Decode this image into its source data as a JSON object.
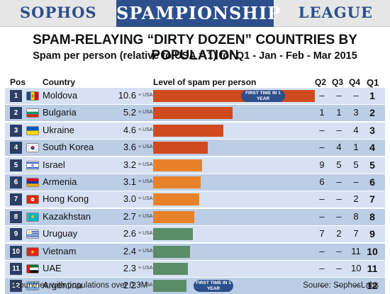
{
  "banner": {
    "left": "SOPHOS",
    "center": "SPAMPIONSHIP",
    "right": "LEAGUE"
  },
  "title": "SPAM-RELAYING “DIRTY DOZEN” COUNTRIES BY POPULATION",
  "subtitle": "Spam per person (relative to USA = 1) for Q1 - Jan - Feb - Mar 2015",
  "headers": {
    "pos": "Pos",
    "country": "Country",
    "level": "Level of spam per person",
    "q2": "Q2",
    "q3": "Q3",
    "q4": "Q4",
    "q1": "Q1"
  },
  "unit_label": "× USA",
  "colors": {
    "red": "#cf4a1e",
    "orange": "#e8822a",
    "green": "#5a8c68",
    "navy": "#2d4f8c"
  },
  "chart_data": {
    "type": "bar",
    "categories": [
      "Moldova",
      "Bulgaria",
      "Ukraine",
      "South Korea",
      "Israel",
      "Armenia",
      "Hong Kong",
      "Kazakhstan",
      "Uruguay",
      "Vietnam",
      "UAE",
      "Argentina"
    ],
    "values": [
      10.6,
      5.2,
      4.6,
      3.6,
      3.2,
      3.1,
      3.0,
      2.7,
      2.6,
      2.4,
      2.3,
      2.2
    ],
    "xlim": [
      0,
      10.6
    ]
  },
  "rows": [
    {
      "pos": "1",
      "country": "Moldova",
      "value": "10.6",
      "q2": "–",
      "q3": "–",
      "q4": "–",
      "q1": "1",
      "color": "red",
      "flag": "moldova",
      "note": "FIRST TIME IN 1 YEAR"
    },
    {
      "pos": "2",
      "country": "Bulgaria",
      "value": "5.2",
      "q2": "1",
      "q3": "1",
      "q4": "3",
      "q1": "2",
      "color": "red",
      "flag": "bulgaria"
    },
    {
      "pos": "3",
      "country": "Ukraine",
      "value": "4.6",
      "q2": "–",
      "q3": "–",
      "q4": "4",
      "q1": "3",
      "color": "red",
      "flag": "ukraine"
    },
    {
      "pos": "4",
      "country": "South Korea",
      "value": "3.6",
      "q2": "–",
      "q3": "4",
      "q4": "1",
      "q1": "4",
      "color": "red",
      "flag": "southkorea"
    },
    {
      "pos": "5",
      "country": "Israel",
      "value": "3.2",
      "q2": "9",
      "q3": "5",
      "q4": "5",
      "q1": "5",
      "color": "orange",
      "flag": "israel"
    },
    {
      "pos": "6",
      "country": "Armenia",
      "value": "3.1",
      "q2": "6",
      "q3": "–",
      "q4": "–",
      "q1": "6",
      "color": "orange",
      "flag": "armenia"
    },
    {
      "pos": "7",
      "country": "Hong Kong",
      "value": "3.0",
      "q2": "–",
      "q3": "–",
      "q4": "2",
      "q1": "7",
      "color": "orange",
      "flag": "hongkong"
    },
    {
      "pos": "8",
      "country": "Kazakhstan",
      "value": "2.7",
      "q2": "–",
      "q3": "–",
      "q4": "8",
      "q1": "8",
      "color": "orange",
      "flag": "kazakhstan"
    },
    {
      "pos": "9",
      "country": "Uruguay",
      "value": "2.6",
      "q2": "7",
      "q3": "2",
      "q4": "7",
      "q1": "9",
      "color": "green",
      "flag": "uruguay"
    },
    {
      "pos": "10",
      "country": "Vietnam",
      "value": "2.4",
      "q2": "–",
      "q3": "–",
      "q4": "11",
      "q1": "10",
      "color": "green",
      "flag": "vietnam"
    },
    {
      "pos": "11",
      "country": "UAE",
      "value": "2.3",
      "q2": "–",
      "q3": "–",
      "q4": "10",
      "q1": "11",
      "color": "green",
      "flag": "uae"
    },
    {
      "pos": "12",
      "country": "Argentina",
      "value": "2.2",
      "q2": "–",
      "q3": "–",
      "q4": "–",
      "q1": "12",
      "color": "green",
      "flag": "argentina",
      "note": "FIRST TIME IN 1 YEAR"
    }
  ],
  "footer": {
    "left": "Countries with populations over 0.3M",
    "right": "Source: SophosLabs"
  }
}
